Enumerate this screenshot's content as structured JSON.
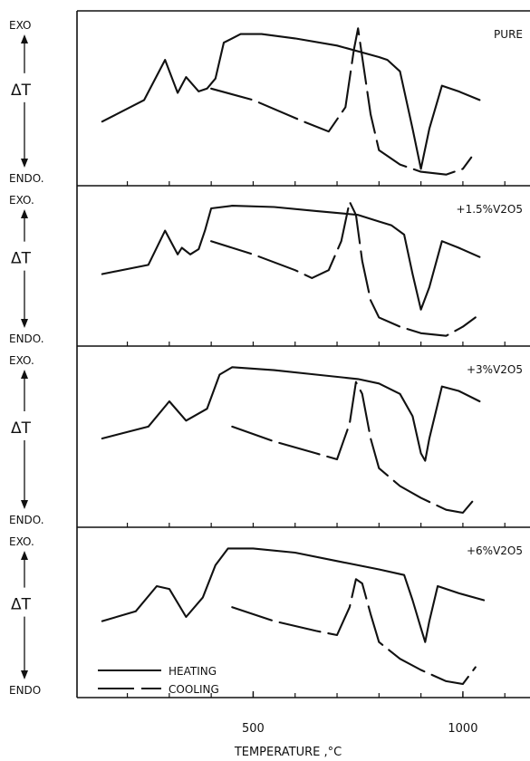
{
  "chart_data": [
    {
      "type": "line",
      "panel_label": "PURE",
      "y_top_label": "EXO",
      "y_mid_label": "ΔT",
      "y_bottom_label": "ENDO.",
      "series": [
        {
          "name": "HEATING",
          "x": [
            140,
            240,
            290,
            320,
            340,
            370,
            390,
            410,
            430,
            470,
            520,
            600,
            700,
            800,
            820,
            850,
            880,
            900,
            920,
            950,
            990,
            1040
          ],
          "y": [
            0.35,
            0.5,
            0.78,
            0.55,
            0.66,
            0.56,
            0.58,
            0.65,
            0.9,
            0.96,
            0.96,
            0.93,
            0.88,
            0.8,
            0.78,
            0.7,
            0.3,
            0.02,
            0.3,
            0.6,
            0.56,
            0.5
          ]
        },
        {
          "name": "COOLING",
          "x": [
            400,
            500,
            620,
            680,
            720,
            740,
            750,
            760,
            780,
            800,
            850,
            900,
            960,
            1000,
            1020
          ],
          "y": [
            0.58,
            0.5,
            0.35,
            0.28,
            0.45,
            0.85,
            1.0,
            0.8,
            0.4,
            0.15,
            0.05,
            0.0,
            -0.02,
            0.02,
            0.1
          ]
        }
      ]
    },
    {
      "type": "line",
      "panel_label": "+1.5%V2O5",
      "y_top_label": "EXO.",
      "y_mid_label": "ΔT",
      "y_bottom_label": "ENDO.",
      "series": [
        {
          "name": "HEATING",
          "x": [
            140,
            250,
            290,
            320,
            330,
            350,
            370,
            385,
            400,
            450,
            550,
            650,
            750,
            800,
            830,
            860,
            880,
            900,
            920,
            950,
            990,
            1040
          ],
          "y": [
            0.45,
            0.52,
            0.78,
            0.6,
            0.65,
            0.6,
            0.64,
            0.78,
            0.95,
            0.97,
            0.96,
            0.93,
            0.9,
            0.85,
            0.82,
            0.75,
            0.45,
            0.18,
            0.35,
            0.7,
            0.65,
            0.58
          ]
        },
        {
          "name": "COOLING",
          "x": [
            400,
            500,
            600,
            640,
            680,
            710,
            730,
            745,
            760,
            780,
            800,
            850,
            900,
            960,
            1000,
            1030
          ],
          "y": [
            0.7,
            0.6,
            0.48,
            0.42,
            0.48,
            0.7,
            1.0,
            0.9,
            0.55,
            0.25,
            0.12,
            0.05,
            0.0,
            -0.02,
            0.05,
            0.12
          ]
        }
      ]
    },
    {
      "type": "line",
      "panel_label": "+3%V2O5",
      "y_top_label": "EXO.",
      "y_mid_label": "ΔT",
      "y_bottom_label": "ENDO.",
      "series": [
        {
          "name": "HEATING",
          "x": [
            140,
            250,
            300,
            340,
            390,
            420,
            450,
            550,
            650,
            750,
            800,
            850,
            880,
            900,
            910,
            920,
            950,
            990,
            1040
          ],
          "y": [
            0.5,
            0.58,
            0.75,
            0.62,
            0.7,
            0.93,
            0.98,
            0.96,
            0.93,
            0.9,
            0.87,
            0.8,
            0.65,
            0.4,
            0.35,
            0.5,
            0.85,
            0.82,
            0.75
          ]
        },
        {
          "name": "COOLING",
          "x": [
            450,
            550,
            650,
            700,
            730,
            745,
            760,
            780,
            800,
            850,
            900,
            960,
            1000,
            1030
          ],
          "y": [
            0.58,
            0.48,
            0.4,
            0.36,
            0.6,
            0.88,
            0.8,
            0.5,
            0.3,
            0.18,
            0.1,
            0.02,
            0.0,
            0.1
          ]
        }
      ]
    },
    {
      "type": "line",
      "panel_label": "+6%V2O5",
      "y_top_label": "EXO.",
      "y_mid_label": "ΔT",
      "y_bottom_label": "ENDO",
      "series": [
        {
          "name": "HEATING",
          "x": [
            140,
            220,
            270,
            300,
            340,
            380,
            410,
            440,
            500,
            600,
            700,
            800,
            860,
            880,
            900,
            910,
            920,
            940,
            990,
            1050
          ],
          "y": [
            0.45,
            0.52,
            0.7,
            0.68,
            0.48,
            0.62,
            0.85,
            0.97,
            0.97,
            0.94,
            0.88,
            0.82,
            0.78,
            0.6,
            0.4,
            0.3,
            0.45,
            0.7,
            0.65,
            0.6
          ]
        },
        {
          "name": "COOLING",
          "x": [
            450,
            550,
            650,
            700,
            730,
            745,
            760,
            780,
            800,
            850,
            900,
            960,
            1000,
            1030
          ],
          "y": [
            0.55,
            0.45,
            0.38,
            0.35,
            0.55,
            0.75,
            0.72,
            0.5,
            0.3,
            0.18,
            0.1,
            0.02,
            0.0,
            0.12
          ]
        }
      ]
    }
  ],
  "axis": {
    "xlabel": "TEMPERATURE ,°C",
    "ticks": [
      {
        "value": 500,
        "label": "500"
      },
      {
        "value": 1000,
        "label": "1000"
      }
    ],
    "xlim": [
      80,
      1160
    ],
    "minor_step": 100
  },
  "legend": {
    "placement": "bottom-left of last panel",
    "entries": [
      {
        "label": "HEATING",
        "style": "solid"
      },
      {
        "label": "COOLING",
        "style": "dashed"
      }
    ]
  }
}
